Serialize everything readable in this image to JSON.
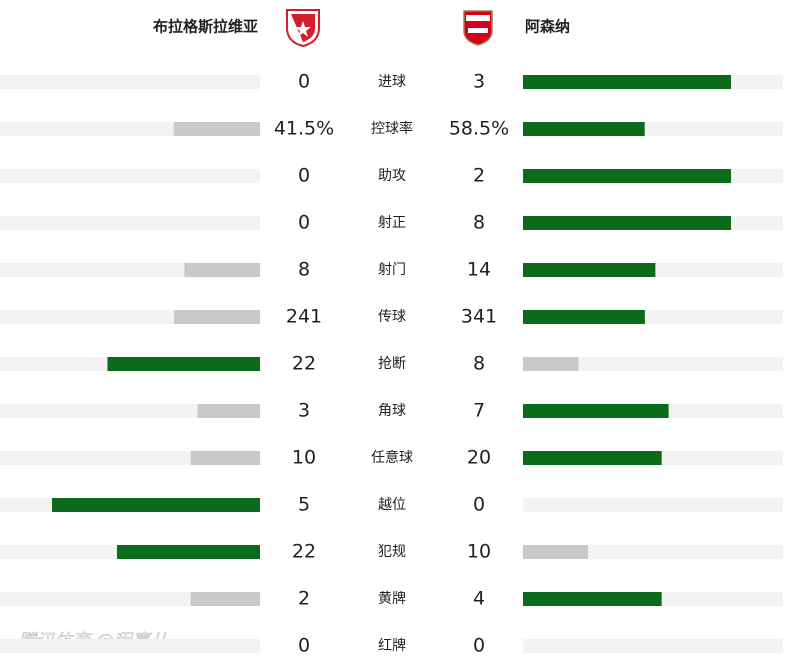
{
  "header": {
    "home": "布拉格斯拉维亚",
    "away": "阿森纳"
  },
  "stats": [
    {
      "name": "进球",
      "home": 0,
      "away": 3
    },
    {
      "name": "控球率",
      "home": 41.5,
      "away": 58.5,
      "home_label": "41.5%",
      "away_label": "58.5%"
    },
    {
      "name": "助攻",
      "home": 0,
      "away": 2
    },
    {
      "name": "射正",
      "home": 0,
      "away": 8
    },
    {
      "name": "射门",
      "home": 8,
      "away": 14
    },
    {
      "name": "传球",
      "home": 241,
      "away": 341
    },
    {
      "name": "抢断",
      "home": 22,
      "away": 8
    },
    {
      "name": "角球",
      "home": 3,
      "away": 7
    },
    {
      "name": "任意球",
      "home": 10,
      "away": 20
    },
    {
      "name": "越位",
      "home": 5,
      "away": 0
    },
    {
      "name": "犯规",
      "home": 22,
      "away": 10
    },
    {
      "name": "黄牌",
      "home": 2,
      "away": 4
    },
    {
      "name": "红牌",
      "home": 0,
      "away": 0
    }
  ],
  "watermark": "腾讯体育 @程喜儿"
}
